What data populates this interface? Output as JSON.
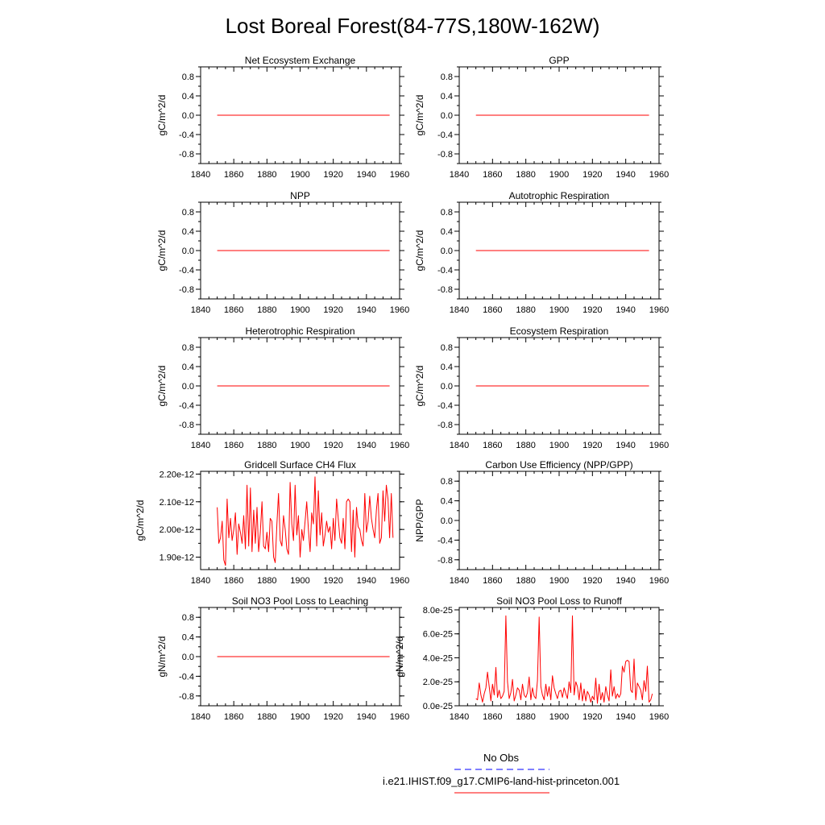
{
  "title": "Lost Boreal Forest(84-77S,180W-162W)",
  "colors": {
    "model": "#ff0000",
    "obs": "#0000ff",
    "axis": "#000000"
  },
  "legend": {
    "obs_label": "No Obs",
    "model_label": "i.e21.IHIST.f09_g17.CMIP6-land-hist-princeton.001"
  },
  "chart_data": [
    {
      "type": "line",
      "title": "Net Ecosystem Exchange",
      "ylabel": "gC/m^2/d",
      "xlabel": "",
      "xlim": [
        1840,
        1960
      ],
      "ylim": [
        -1,
        1
      ],
      "xticks": [
        "1840",
        "1860",
        "1880",
        "1900",
        "1920",
        "1940",
        "1960"
      ],
      "yticks": [
        "0.8",
        "0.4",
        "0.0",
        "-0.4",
        "-0.8"
      ],
      "ytick_values": [
        0.8,
        0.4,
        0.0,
        -0.4,
        -0.8
      ],
      "series": [
        {
          "x_start": 1850,
          "x_end": 1954,
          "constant": 0
        }
      ]
    },
    {
      "type": "line",
      "title": "GPP",
      "ylabel": "gC/m^2/d",
      "xlabel": "",
      "xlim": [
        1840,
        1960
      ],
      "ylim": [
        -1,
        1
      ],
      "xticks": [
        "1840",
        "1860",
        "1880",
        "1900",
        "1920",
        "1940",
        "1960"
      ],
      "yticks": [
        "0.8",
        "0.4",
        "0.0",
        "-0.4",
        "-0.8"
      ],
      "ytick_values": [
        0.8,
        0.4,
        0.0,
        -0.4,
        -0.8
      ],
      "series": [
        {
          "x_start": 1850,
          "x_end": 1954,
          "constant": 0
        }
      ]
    },
    {
      "type": "line",
      "title": "NPP",
      "ylabel": "gC/m^2/d",
      "xlabel": "",
      "xlim": [
        1840,
        1960
      ],
      "ylim": [
        -1,
        1
      ],
      "xticks": [
        "1840",
        "1860",
        "1880",
        "1900",
        "1920",
        "1940",
        "1960"
      ],
      "yticks": [
        "0.8",
        "0.4",
        "0.0",
        "-0.4",
        "-0.8"
      ],
      "ytick_values": [
        0.8,
        0.4,
        0.0,
        -0.4,
        -0.8
      ],
      "series": [
        {
          "x_start": 1850,
          "x_end": 1954,
          "constant": 0
        }
      ]
    },
    {
      "type": "line",
      "title": "Autotrophic Respiration",
      "ylabel": "gC/m^2/d",
      "xlabel": "",
      "xlim": [
        1840,
        1960
      ],
      "ylim": [
        -1,
        1
      ],
      "xticks": [
        "1840",
        "1860",
        "1880",
        "1900",
        "1920",
        "1940",
        "1960"
      ],
      "yticks": [
        "0.8",
        "0.4",
        "0.0",
        "-0.4",
        "-0.8"
      ],
      "ytick_values": [
        0.8,
        0.4,
        0.0,
        -0.4,
        -0.8
      ],
      "series": [
        {
          "x_start": 1850,
          "x_end": 1954,
          "constant": 0
        }
      ]
    },
    {
      "type": "line",
      "title": "Heterotrophic Respiration",
      "ylabel": "gC/m^2/d",
      "xlabel": "",
      "xlim": [
        1840,
        1960
      ],
      "ylim": [
        -1,
        1
      ],
      "xticks": [
        "1840",
        "1860",
        "1880",
        "1900",
        "1920",
        "1940",
        "1960"
      ],
      "yticks": [
        "0.8",
        "0.4",
        "0.0",
        "-0.4",
        "-0.8"
      ],
      "ytick_values": [
        0.8,
        0.4,
        0.0,
        -0.4,
        -0.8
      ],
      "series": [
        {
          "x_start": 1850,
          "x_end": 1954,
          "constant": 0
        }
      ]
    },
    {
      "type": "line",
      "title": "Ecosystem Respiration",
      "ylabel": "gC/m^2/d",
      "xlabel": "",
      "xlim": [
        1840,
        1960
      ],
      "ylim": [
        -1,
        1
      ],
      "xticks": [
        "1840",
        "1860",
        "1880",
        "1900",
        "1920",
        "1940",
        "1960"
      ],
      "yticks": [
        "0.8",
        "0.4",
        "0.0",
        "-0.4",
        "-0.8"
      ],
      "ytick_values": [
        0.8,
        0.4,
        0.0,
        -0.4,
        -0.8
      ],
      "series": [
        {
          "x_start": 1850,
          "x_end": 1954,
          "constant": 0
        }
      ]
    },
    {
      "type": "line",
      "title": "Gridcell Surface CH4 Flux",
      "ylabel": "gC/m^2/d",
      "xlabel": "",
      "xlim": [
        1840,
        1960
      ],
      "ylim": [
        1.855e-12,
        2.21e-12
      ],
      "xticks": [
        "1840",
        "1860",
        "1880",
        "1900",
        "1920",
        "1940",
        "1960"
      ],
      "yticks": [
        "2.20e-12",
        "2.10e-12",
        "2.00e-12",
        "1.90e-12"
      ],
      "ytick_values": [
        2.2e-12,
        2.1e-12,
        2e-12,
        1.9e-12
      ],
      "series": [
        {
          "x_start": 1850,
          "x_step": 1,
          "values": [
            2.08,
            1.95,
            1.97,
            2.03,
            1.89,
            1.87,
            2.11,
            1.97,
            2.04,
            1.96,
            2.0,
            2.06,
            1.91,
            2.02,
            1.99,
            1.95,
            2.05,
            1.93,
            2.16,
            1.94,
            2.15,
            1.92,
            2.07,
            1.95,
            2.08,
            1.92,
            1.99,
            2.1,
            1.94,
            1.93,
            1.99,
            1.92,
            2.04,
            2.03,
            1.9,
            1.88,
            2.02,
            2.13,
            1.96,
            1.94,
            2.05,
            2.0,
            1.93,
            1.91,
            2.17,
            2.02,
            1.96,
            2.16,
            1.98,
            2.05,
            1.9,
            2.0,
            1.96,
            2.03,
            2.1,
            2.0,
            1.92,
            2.06,
            2.02,
            2.19,
            1.94,
            2.14,
            1.98,
            2.06,
            1.94,
            1.98,
            2.03,
            1.99,
            2.01,
            1.93,
            2.04,
            1.96,
            2.11,
            2.04,
            1.97,
            1.95,
            2.04,
            1.93,
            2.1,
            2.11,
            2.1,
            1.92,
            2.07,
            1.9,
            2.08,
            2.01,
            2.0,
            1.96,
            1.94,
            2.13,
            1.99,
            2.03,
            2.12,
            2.04,
            2.0,
            1.97,
            2.07,
            2.13,
            1.95,
            1.97,
            2.14,
            2.03,
            2.16,
            2.11,
            1.97,
            2.13,
            1.97
          ]
        }
      ]
    },
    {
      "type": "line",
      "title": "Carbon Use Efficiency (NPP/GPP)",
      "ylabel": "NPP/GPP",
      "xlabel": "",
      "xlim": [
        1840,
        1960
      ],
      "ylim": [
        -1,
        1
      ],
      "xticks": [
        "1840",
        "1860",
        "1880",
        "1900",
        "1920",
        "1940",
        "1960"
      ],
      "yticks": [
        "0.8",
        "0.4",
        "0.0",
        "-0.4",
        "-0.8"
      ],
      "ytick_values": [
        0.8,
        0.4,
        0.0,
        -0.4,
        -0.8
      ],
      "series": []
    },
    {
      "type": "line",
      "title": "Soil NO3 Pool Loss to Leaching",
      "ylabel": "gN/m^2/d",
      "xlabel": "",
      "xlim": [
        1840,
        1960
      ],
      "ylim": [
        -1,
        1
      ],
      "xticks": [
        "1840",
        "1860",
        "1880",
        "1900",
        "1920",
        "1940",
        "1960"
      ],
      "yticks": [
        "0.8",
        "0.4",
        "0.0",
        "-0.4",
        "-0.8"
      ],
      "ytick_values": [
        0.8,
        0.4,
        0.0,
        -0.4,
        -0.8
      ],
      "series": [
        {
          "x_start": 1850,
          "x_end": 1954,
          "constant": 0
        }
      ]
    },
    {
      "type": "line",
      "title": "Soil NO3 Pool Loss to Runoff",
      "ylabel": "gN/m^2/d",
      "xlabel": "",
      "xlim": [
        1840,
        1960
      ],
      "ylim": [
        0,
        8.2e-25
      ],
      "xticks": [
        "1840",
        "1860",
        "1880",
        "1900",
        "1920",
        "1940",
        "1960"
      ],
      "yticks": [
        "8.0e-25",
        "6.0e-25",
        "4.0e-25",
        "2.0e-25",
        "0.0e-25"
      ],
      "ytick_values": [
        8e-25,
        6e-25,
        4e-25,
        2e-25,
        0
      ],
      "series": [
        {
          "x_start": 1850,
          "x_step": 1,
          "values": [
            0.6,
            0.5,
            1.9,
            0.9,
            0.3,
            1.0,
            1.5,
            2.8,
            1.6,
            0.4,
            1.8,
            0.9,
            3.2,
            0.7,
            1.3,
            0.6,
            0.8,
            1.2,
            7.5,
            2.0,
            0.6,
            1.1,
            2.2,
            0.4,
            0.9,
            1.5,
            1.3,
            0.5,
            1.8,
            0.9,
            0.7,
            1.1,
            2.4,
            0.5,
            1.5,
            0.8,
            0.6,
            2.1,
            7.4,
            1.6,
            0.9,
            0.5,
            1.8,
            0.8,
            1.6,
            0.5,
            2.5,
            1.5,
            1.0,
            0.6,
            1.2,
            1.3,
            0.7,
            1.5,
            1.0,
            0.6,
            2.0,
            1.1,
            7.5,
            0.9,
            2.0,
            1.6,
            0.5,
            1.9,
            0.4,
            1.4,
            0.4,
            1.2,
            0.9,
            0.3,
            0.8,
            0.5,
            2.3,
            0.2,
            1.8,
            0.5,
            1.1,
            0.3,
            1.6,
            0.9,
            0.4,
            3.0,
            0.8,
            1.6,
            0.6,
            1.0,
            0.7,
            1.0,
            3.3,
            2.8,
            3.7,
            3.8,
            3.7,
            1.3,
            1.1,
            3.9,
            0.5,
            1.9,
            1.6,
            1.3,
            0.5,
            2.1,
            1.2,
            3.3,
            0.3,
            0.5,
            1.0
          ]
        }
      ]
    }
  ]
}
